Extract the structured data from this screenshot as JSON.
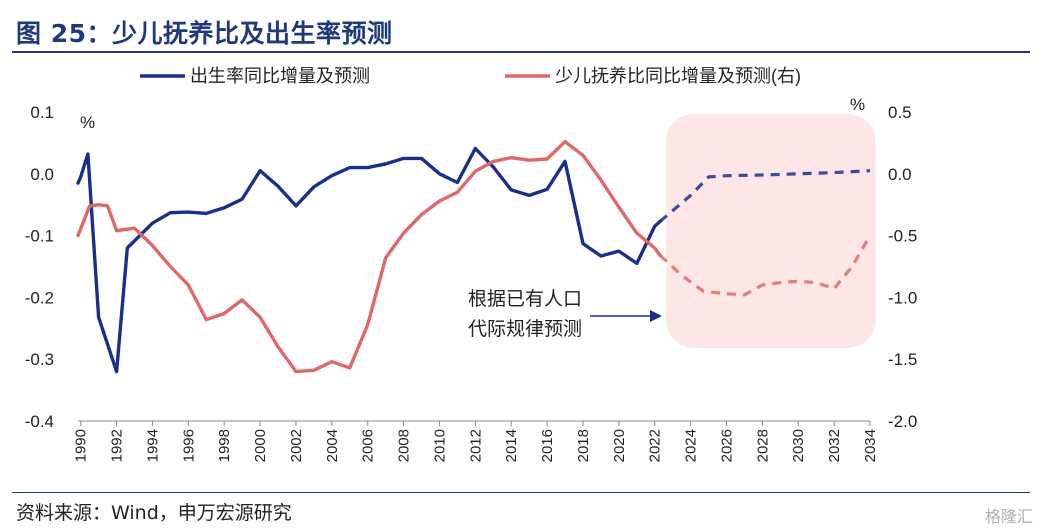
{
  "header": {
    "title": "图 25：少儿抚养比及出生率预测"
  },
  "footer": {
    "source": "资料来源：Wind，申万宏源研究",
    "watermark": "格隆汇"
  },
  "colors": {
    "birth": "#1a2f8c",
    "dependency": "#e06868",
    "forecast_band": "#fde6e6",
    "title": "#1f3a7a"
  },
  "chart_data": {
    "type": "line",
    "title": "",
    "xlabel": "",
    "x_range": [
      1989.85,
      2034
    ],
    "x_ticks": [
      "1990",
      "1992",
      "1994",
      "1996",
      "1998",
      "2000",
      "2002",
      "2004",
      "2006",
      "2008",
      "2010",
      "2012",
      "2014",
      "2016",
      "2018",
      "2020",
      "2022",
      "2024",
      "2026",
      "2028",
      "2030",
      "2032",
      "2034"
    ],
    "y_left": {
      "unit": "%",
      "range": [
        -0.4,
        0.1
      ],
      "ticks": [
        "0.1",
        "0.0",
        "-0.1",
        "-0.2",
        "-0.3",
        "-0.4"
      ]
    },
    "y_right": {
      "unit": "%",
      "range": [
        -2.0,
        0.5
      ],
      "ticks": [
        "0.5",
        "0.0",
        "-0.5",
        "-1.0",
        "-1.5",
        "-2.0"
      ]
    },
    "forecast_region": {
      "x_start": 2022.3,
      "x_end": 2034.2
    },
    "annotation": {
      "lines": [
        "根据已有人口",
        "代际规律预测"
      ],
      "points_to_x": 2022.3
    },
    "legend_position": "top",
    "series": [
      {
        "name": "出生率同比增量及预测",
        "axis": "left",
        "color": "#1a2f8c",
        "actual": [
          [
            1989.85,
            -0.015
          ],
          [
            1990,
            -0.005
          ],
          [
            1990.4,
            0.032
          ],
          [
            1991,
            -0.232
          ],
          [
            1992,
            -0.32
          ],
          [
            1992.6,
            -0.12
          ],
          [
            1994,
            -0.08
          ],
          [
            1995,
            -0.063
          ],
          [
            1996,
            -0.062
          ],
          [
            1997,
            -0.064
          ],
          [
            1998,
            -0.055
          ],
          [
            1999,
            -0.041
          ],
          [
            2000,
            0.005
          ],
          [
            2001,
            -0.02
          ],
          [
            2002,
            -0.052
          ],
          [
            2003,
            -0.021
          ],
          [
            2004,
            -0.003
          ],
          [
            2005,
            0.01
          ],
          [
            2006,
            0.01
          ],
          [
            2007,
            0.016
          ],
          [
            2008,
            0.025
          ],
          [
            2009,
            0.025
          ],
          [
            2010,
            0.0
          ],
          [
            2011,
            -0.014
          ],
          [
            2012,
            0.041
          ],
          [
            2013,
            0.011
          ],
          [
            2014,
            -0.026
          ],
          [
            2015,
            -0.035
          ],
          [
            2016,
            -0.025
          ],
          [
            2017,
            0.02
          ],
          [
            2018,
            -0.113
          ],
          [
            2019,
            -0.133
          ],
          [
            2020,
            -0.125
          ],
          [
            2021,
            -0.145
          ],
          [
            2022,
            -0.085
          ],
          [
            2022.3,
            -0.077
          ]
        ],
        "forecast": [
          [
            2022.3,
            -0.077
          ],
          [
            2024,
            -0.035
          ],
          [
            2025,
            -0.005
          ],
          [
            2026,
            -0.003
          ],
          [
            2028,
            -0.002
          ],
          [
            2030,
            0.0
          ],
          [
            2032,
            0.002
          ],
          [
            2034,
            0.005
          ]
        ]
      },
      {
        "name": "少儿抚养比同比增量及预测(右)",
        "axis": "right",
        "color": "#e06868",
        "actual": [
          [
            1989.85,
            -0.5
          ],
          [
            1990.5,
            -0.26
          ],
          [
            1991,
            -0.25
          ],
          [
            1991.5,
            -0.26
          ],
          [
            1992,
            -0.46
          ],
          [
            1993,
            -0.44
          ],
          [
            1994,
            -0.58
          ],
          [
            1995,
            -0.75
          ],
          [
            1996,
            -0.9
          ],
          [
            1997,
            -1.18
          ],
          [
            1998,
            -1.13
          ],
          [
            1999,
            -1.02
          ],
          [
            2000,
            -1.16
          ],
          [
            2001,
            -1.4
          ],
          [
            2002,
            -1.6
          ],
          [
            2003,
            -1.59
          ],
          [
            2004,
            -1.52
          ],
          [
            2005,
            -1.57
          ],
          [
            2006,
            -1.22
          ],
          [
            2007,
            -0.68
          ],
          [
            2008,
            -0.48
          ],
          [
            2009,
            -0.33
          ],
          [
            2010,
            -0.22
          ],
          [
            2011,
            -0.15
          ],
          [
            2012,
            0.02
          ],
          [
            2013,
            0.1
          ],
          [
            2014,
            0.13
          ],
          [
            2015,
            0.11
          ],
          [
            2016,
            0.12
          ],
          [
            2017,
            0.26
          ],
          [
            2018,
            0.15
          ],
          [
            2019,
            -0.05
          ],
          [
            2020,
            -0.27
          ],
          [
            2021,
            -0.48
          ],
          [
            2022,
            -0.6
          ],
          [
            2022.3,
            -0.66
          ]
        ],
        "forecast": [
          [
            2022.3,
            -0.66
          ],
          [
            2023.5,
            -0.82
          ],
          [
            2024.7,
            -0.95
          ],
          [
            2026,
            -0.97
          ],
          [
            2027,
            -0.98
          ],
          [
            2028,
            -0.9
          ],
          [
            2029,
            -0.88
          ],
          [
            2030,
            -0.87
          ],
          [
            2031,
            -0.88
          ],
          [
            2032,
            -0.93
          ],
          [
            2033,
            -0.75
          ],
          [
            2034,
            -0.5
          ]
        ]
      }
    ]
  }
}
